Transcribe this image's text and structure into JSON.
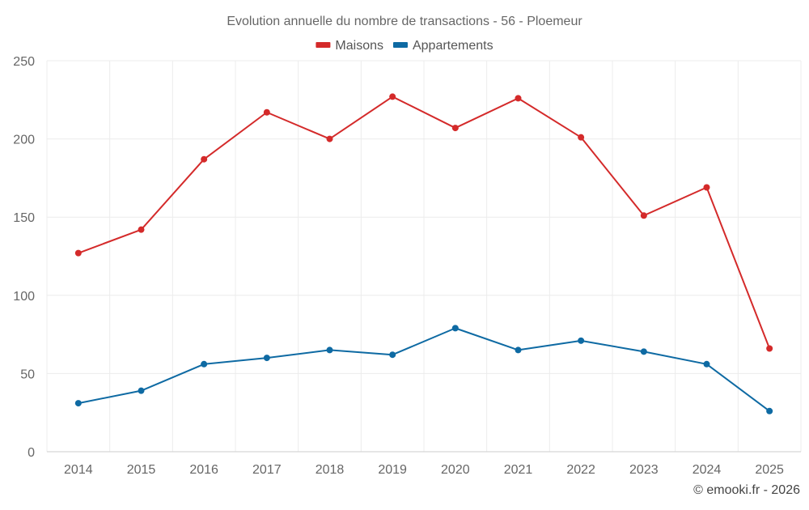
{
  "chart_data": {
    "type": "line",
    "title": "Evolution annuelle du nombre de transactions - 56 - Ploemeur",
    "xlabel": "",
    "ylabel": "",
    "categories": [
      "2014",
      "2015",
      "2016",
      "2017",
      "2018",
      "2019",
      "2020",
      "2021",
      "2022",
      "2023",
      "2024",
      "2025"
    ],
    "ylim": [
      0,
      250
    ],
    "yticks": [
      0,
      50,
      100,
      150,
      200,
      250
    ],
    "grid": true,
    "legend_position": "top-center",
    "series": [
      {
        "name": "Maisons",
        "color": "#d42a2a",
        "values": [
          127,
          142,
          187,
          217,
          200,
          227,
          207,
          226,
          201,
          151,
          169,
          66
        ]
      },
      {
        "name": "Appartements",
        "color": "#0e6aa3",
        "values": [
          31,
          39,
          56,
          60,
          65,
          62,
          79,
          65,
          71,
          64,
          56,
          26
        ]
      }
    ]
  },
  "credit": "© emooki.fr - 2026"
}
